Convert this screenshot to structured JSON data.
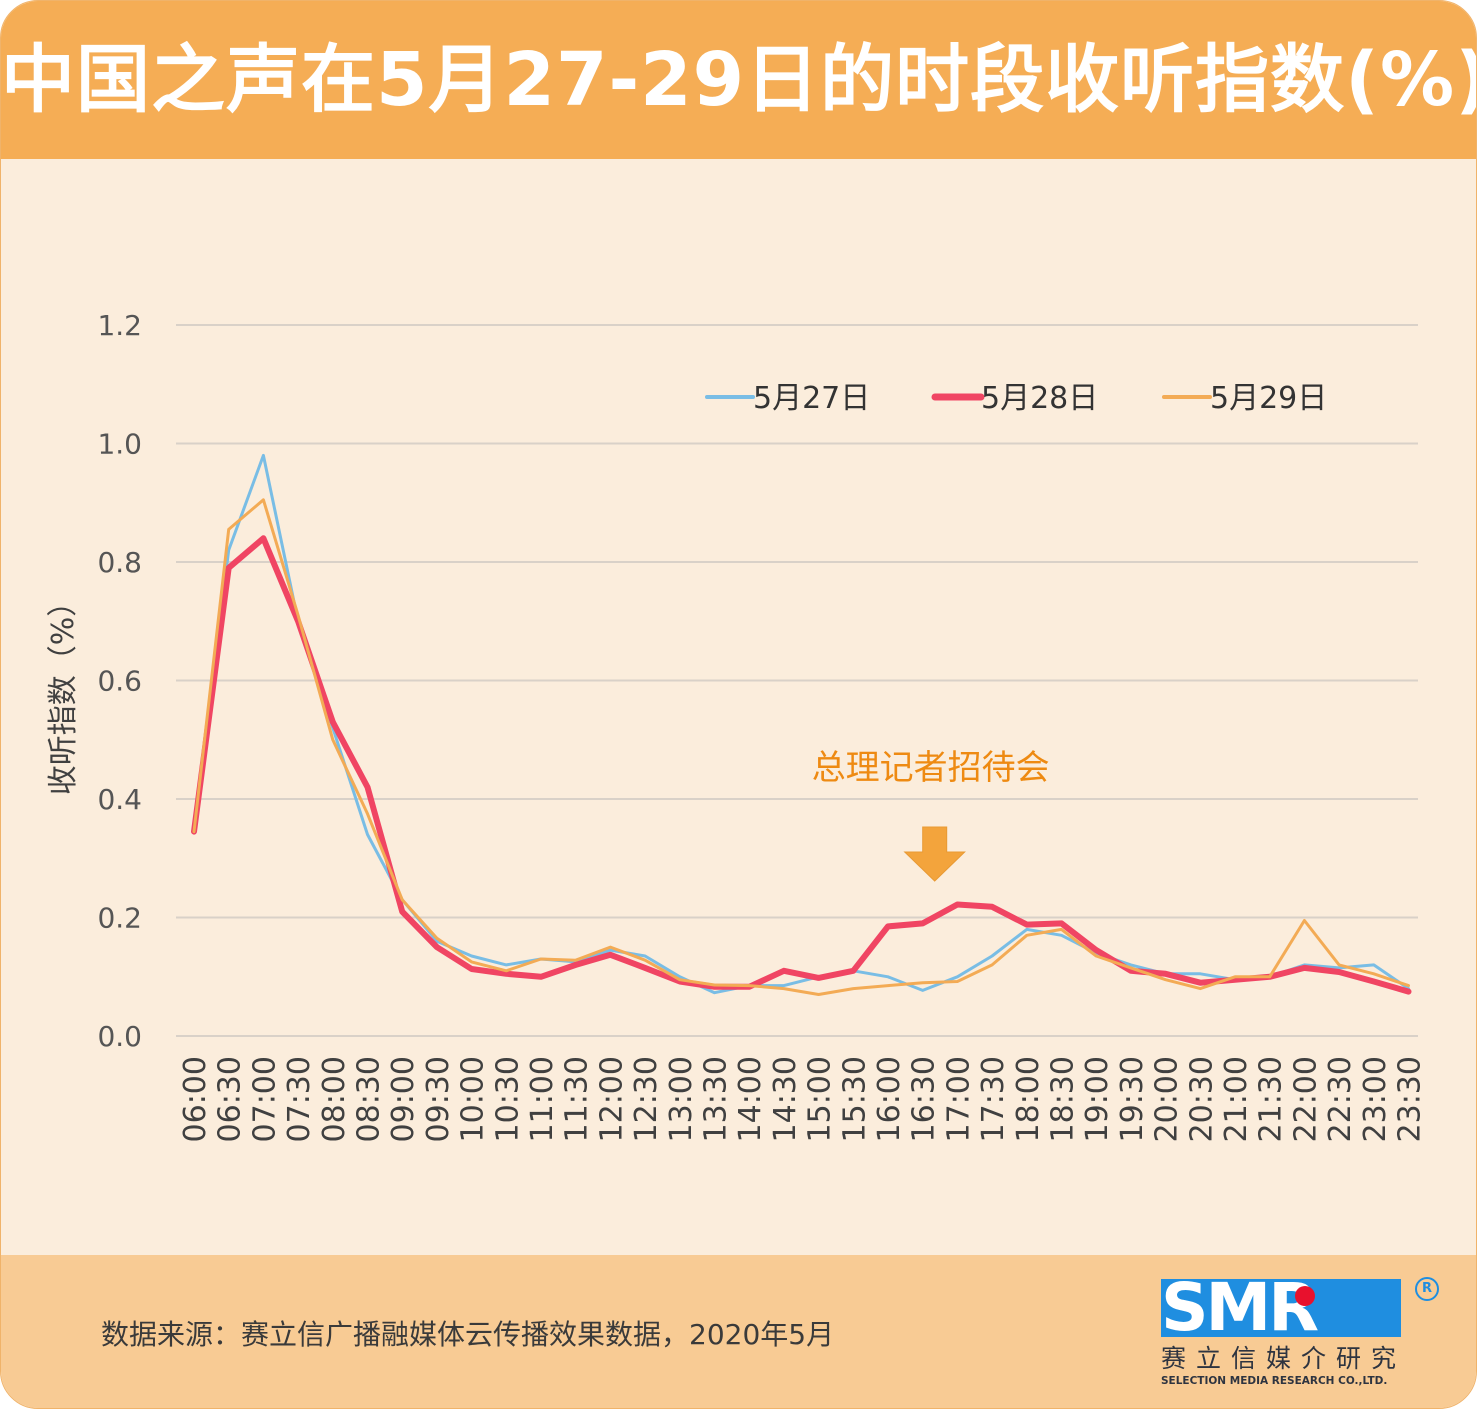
{
  "title": "中国之声在5月27-29日的时段收听指数(%)",
  "footer": {
    "source": "数据来源：赛立信广播融媒体云传播效果数据，2020年5月"
  },
  "logo": {
    "mark": "SMR",
    "registered": "R",
    "name_cn": "赛立信媒介研究",
    "name_en": "SELECTION MEDIA RESEARCH CO.,LTD."
  },
  "colors": {
    "header": "#f5ad55",
    "background": "#fbeddc",
    "footer": "#f8cb94",
    "annotation": "#ee8a12"
  },
  "chart_data": {
    "type": "line",
    "title": "中国之声在5月27-29日的时段收听指数(%)",
    "xlabel": "",
    "ylabel": "收听指数（%）",
    "ylim": [
      0,
      1.2
    ],
    "yticks": [
      0.0,
      0.2,
      0.4,
      0.6,
      0.8,
      1.0,
      1.2
    ],
    "ytick_labels": [
      "0.0",
      "0.2",
      "0.4",
      "0.6",
      "0.8",
      "1.0",
      "1.2"
    ],
    "grid": true,
    "legend_position": "top-right",
    "x": [
      "06:00",
      "06:30",
      "07:00",
      "07:30",
      "08:00",
      "08:30",
      "09:00",
      "09:30",
      "10:00",
      "10:30",
      "11:00",
      "11:30",
      "12:00",
      "12:30",
      "13:00",
      "13:30",
      "14:00",
      "14:30",
      "15:00",
      "15:30",
      "16:00",
      "16:30",
      "17:00",
      "17:30",
      "18:00",
      "18:30",
      "19:00",
      "19:30",
      "20:00",
      "20:30",
      "21:00",
      "21:30",
      "22:00",
      "22:30",
      "23:00",
      "23:30"
    ],
    "series": [
      {
        "name": "5月27日",
        "color": "#79bde5",
        "width": 3,
        "values": [
          0.35,
          0.82,
          0.98,
          0.7,
          0.52,
          0.34,
          0.23,
          0.16,
          0.135,
          0.12,
          0.13,
          0.125,
          0.145,
          0.135,
          0.1,
          0.073,
          0.085,
          0.085,
          0.1,
          0.11,
          0.1,
          0.077,
          0.1,
          0.135,
          0.18,
          0.17,
          0.14,
          0.12,
          0.105,
          0.105,
          0.095,
          0.1,
          0.12,
          0.115,
          0.12,
          0.08
        ]
      },
      {
        "name": "5月28日",
        "color": "#f04563",
        "width": 6,
        "values": [
          0.345,
          0.79,
          0.84,
          0.7,
          0.53,
          0.42,
          0.21,
          0.15,
          0.113,
          0.105,
          0.1,
          0.12,
          0.137,
          0.115,
          0.092,
          0.083,
          0.083,
          0.11,
          0.098,
          0.11,
          0.185,
          0.19,
          0.222,
          0.218,
          0.188,
          0.19,
          0.145,
          0.11,
          0.105,
          0.09,
          0.095,
          0.1,
          0.115,
          0.108,
          0.092,
          0.075
        ]
      },
      {
        "name": "5月29日",
        "color": "#f3ab55",
        "width": 3,
        "values": [
          0.345,
          0.855,
          0.905,
          0.71,
          0.5,
          0.375,
          0.23,
          0.165,
          0.125,
          0.11,
          0.13,
          0.128,
          0.15,
          0.128,
          0.095,
          0.086,
          0.085,
          0.08,
          0.07,
          0.08,
          0.085,
          0.09,
          0.092,
          0.12,
          0.17,
          0.18,
          0.135,
          0.115,
          0.095,
          0.08,
          0.1,
          0.1,
          0.195,
          0.12,
          0.105,
          0.085
        ]
      }
    ],
    "annotations": [
      {
        "text": "总理记者招待会",
        "x": "16:30"
      }
    ]
  }
}
